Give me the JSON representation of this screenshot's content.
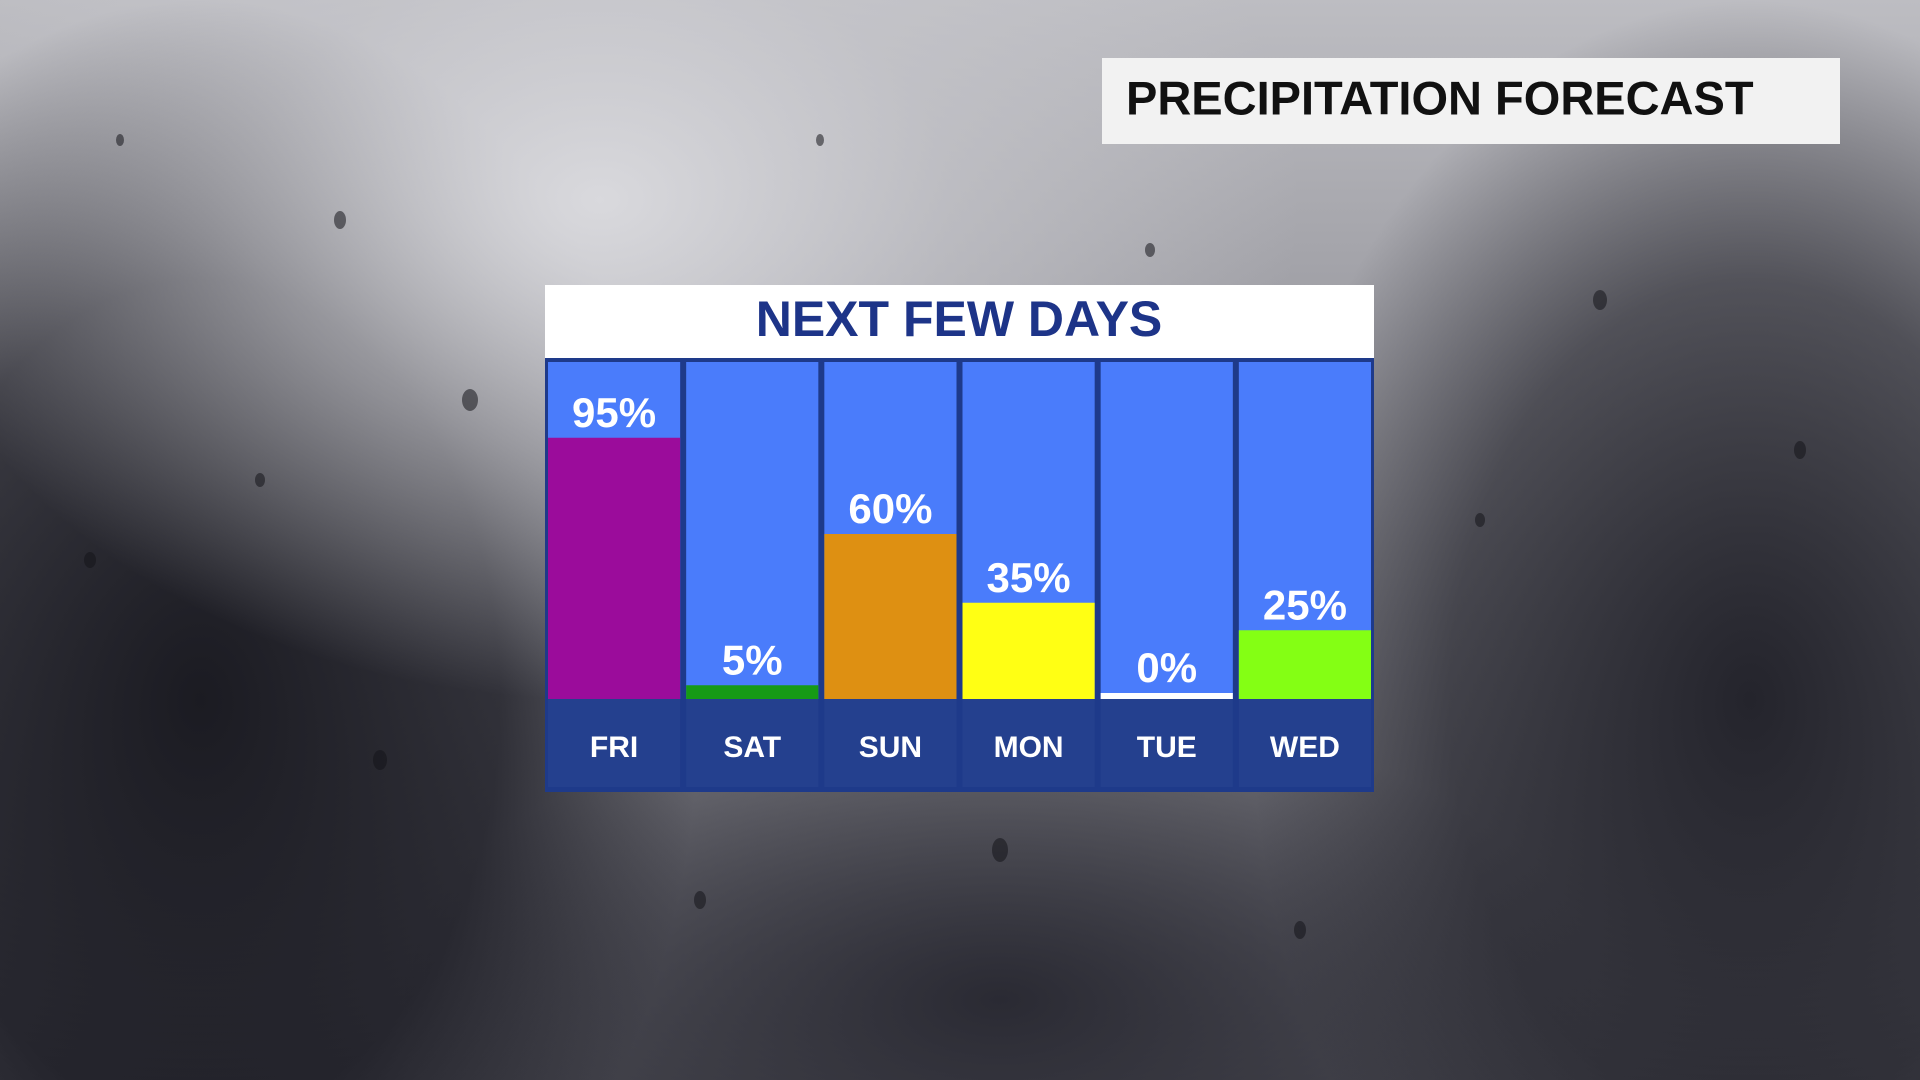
{
  "banner": "PRECIPITATION FORECAST",
  "chart_data": {
    "type": "bar",
    "title": "NEXT FEW DAYS",
    "categories": [
      "FRI",
      "SAT",
      "SUN",
      "MON",
      "TUE",
      "WED"
    ],
    "values": [
      95,
      5,
      60,
      35,
      0,
      25
    ],
    "value_labels": [
      "95%",
      "5%",
      "60%",
      "35%",
      "0%",
      "25%"
    ],
    "colors": [
      "#9b0c9b",
      "#169a16",
      "#de9012",
      "#ffff14",
      "#ffffff",
      "#84ff14"
    ],
    "ylim": [
      0,
      100
    ]
  }
}
